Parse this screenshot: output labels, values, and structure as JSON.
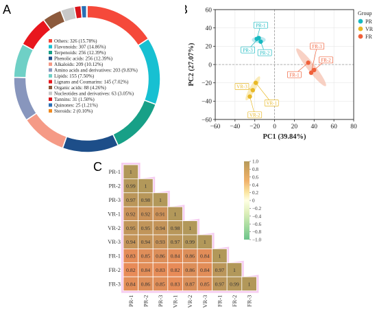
{
  "panels": {
    "a": "A",
    "b": "B",
    "c": "C"
  },
  "chart_data": [
    {
      "type": "pie",
      "donut": true,
      "legend_placement": "center",
      "slices": [
        {
          "label": "Others: 326 (15.78%)",
          "value": 326,
          "percent": 15.78,
          "color": "#f5493a"
        },
        {
          "label": "Flavonoids: 307 (14.86%)",
          "value": 307,
          "percent": 14.86,
          "color": "#17c0d2"
        },
        {
          "label": "Terpenoids: 256 (12.39%)",
          "value": 256,
          "percent": 12.39,
          "color": "#17a087"
        },
        {
          "label": "Phenolic acids: 256 (12.39%)",
          "value": 256,
          "percent": 12.39,
          "color": "#1d4e89"
        },
        {
          "label": "Alkaloids: 209 (10.12%)",
          "value": 209,
          "percent": 10.12,
          "color": "#f59a86"
        },
        {
          "label": "Amino acids and derivatives: 203 (9.83%)",
          "value": 203,
          "percent": 9.83,
          "color": "#8896bd"
        },
        {
          "label": "Lipids: 155 (7.50%)",
          "value": 155,
          "percent": 7.5,
          "color": "#6fd0c6"
        },
        {
          "label": "Lignans and Coumarins: 145 (7.02%)",
          "value": 145,
          "percent": 7.02,
          "color": "#e8161d"
        },
        {
          "label": "Organic acids: 88 (4.26%)",
          "value": 88,
          "percent": 4.26,
          "color": "#8c5a3c"
        },
        {
          "label": "Nucleotides and derivatives: 63 (3.05%)",
          "value": 63,
          "percent": 3.05,
          "color": "#c8c8c8"
        },
        {
          "label": "Tannins: 31 (1.50%)",
          "value": 31,
          "percent": 1.5,
          "color": "#d9141b"
        },
        {
          "label": "Quinones: 25 (1.21%)",
          "value": 25,
          "percent": 1.21,
          "color": "#2a6fb4"
        },
        {
          "label": "Steroids: 2 (0.10%)",
          "value": 2,
          "percent": 0.1,
          "color": "#f08a20"
        }
      ]
    },
    {
      "type": "scatter",
      "xlabel": "PC1 (39.84%)",
      "ylabel": "PC2 (27.07%)",
      "xlim": [
        -60,
        80
      ],
      "ylim": [
        -60,
        60
      ],
      "xticks": [
        -60,
        -40,
        -20,
        0,
        20,
        40,
        60,
        80
      ],
      "yticks": [
        -60,
        -40,
        -20,
        0,
        20,
        40,
        60
      ],
      "grid": true,
      "legend_title": "Group",
      "legend_placement": "right",
      "series": [
        {
          "name": "PR",
          "color": "#17b9c0",
          "ellipse_fill": "#a9e0ea",
          "points": [
            {
              "label": "PR-1",
              "x": -18,
              "y": 28
            },
            {
              "label": "PR-2",
              "x": -14,
              "y": 25
            },
            {
              "label": "PR-3",
              "x": -16,
              "y": 29
            }
          ],
          "label_at": [
            {
              "x": -14,
              "y": 43
            },
            {
              "x": -10,
              "y": 13
            },
            {
              "x": -27,
              "y": 16
            }
          ]
        },
        {
          "name": "VR",
          "color": "#e8b826",
          "ellipse_fill": "#f8e4a0",
          "points": [
            {
              "label": "VR-1",
              "x": -19,
              "y": -20
            },
            {
              "label": "VR-2",
              "x": -25,
              "y": -35
            },
            {
              "label": "VR-3",
              "x": -22,
              "y": -28
            }
          ],
          "label_at": [
            {
              "x": -3,
              "y": -42
            },
            {
              "x": -20,
              "y": -55
            },
            {
              "x": -33,
              "y": -24
            }
          ]
        },
        {
          "name": "FR",
          "color": "#f0603a",
          "ellipse_fill": "#f6c2b0",
          "points": [
            {
              "label": "FR-1",
              "x": 34,
              "y": 2
            },
            {
              "label": "FR-2",
              "x": 40,
              "y": -6
            },
            {
              "label": "FR-3",
              "x": 37,
              "y": -9
            }
          ],
          "label_at": [
            {
              "x": 20,
              "y": -11
            },
            {
              "x": 52,
              "y": 5
            },
            {
              "x": 43,
              "y": 20
            }
          ]
        }
      ]
    },
    {
      "type": "heatmap",
      "labels": [
        "PR-1",
        "PR-2",
        "PR-3",
        "VR-1",
        "VR-2",
        "VR-3",
        "FR-1",
        "FR-2",
        "FR-3"
      ],
      "cells": [
        [
          "1"
        ],
        [
          "0.99",
          "1"
        ],
        [
          "0.97",
          "0.98",
          "1"
        ],
        [
          "0.92",
          "0.92",
          "0.91",
          "1"
        ],
        [
          "0.95",
          "0.95",
          "0.94",
          "0.98",
          "1"
        ],
        [
          "0.94",
          "0.94",
          "0.93",
          "0.97",
          "0.99",
          "1"
        ],
        [
          "0.83",
          "0.85",
          "0.86",
          "0.84",
          "0.86",
          "0.84",
          "1"
        ],
        [
          "0.82",
          "0.84",
          "0.83",
          "0.82",
          "0.86",
          "0.84",
          "0.97",
          "1"
        ],
        [
          "0.84",
          "0.86",
          "0.85",
          "0.83",
          "0.87",
          "0.85",
          "0.97",
          "0.99",
          "1"
        ]
      ],
      "colorbar": {
        "min": -1.0,
        "max": 1.0,
        "ticks": [
          "1.0",
          "0.8",
          "0.6",
          "0.4",
          "0.2",
          "0",
          "−0.2",
          "−0.4",
          "−0.6",
          "−0.8",
          "−1.0"
        ]
      }
    }
  ]
}
